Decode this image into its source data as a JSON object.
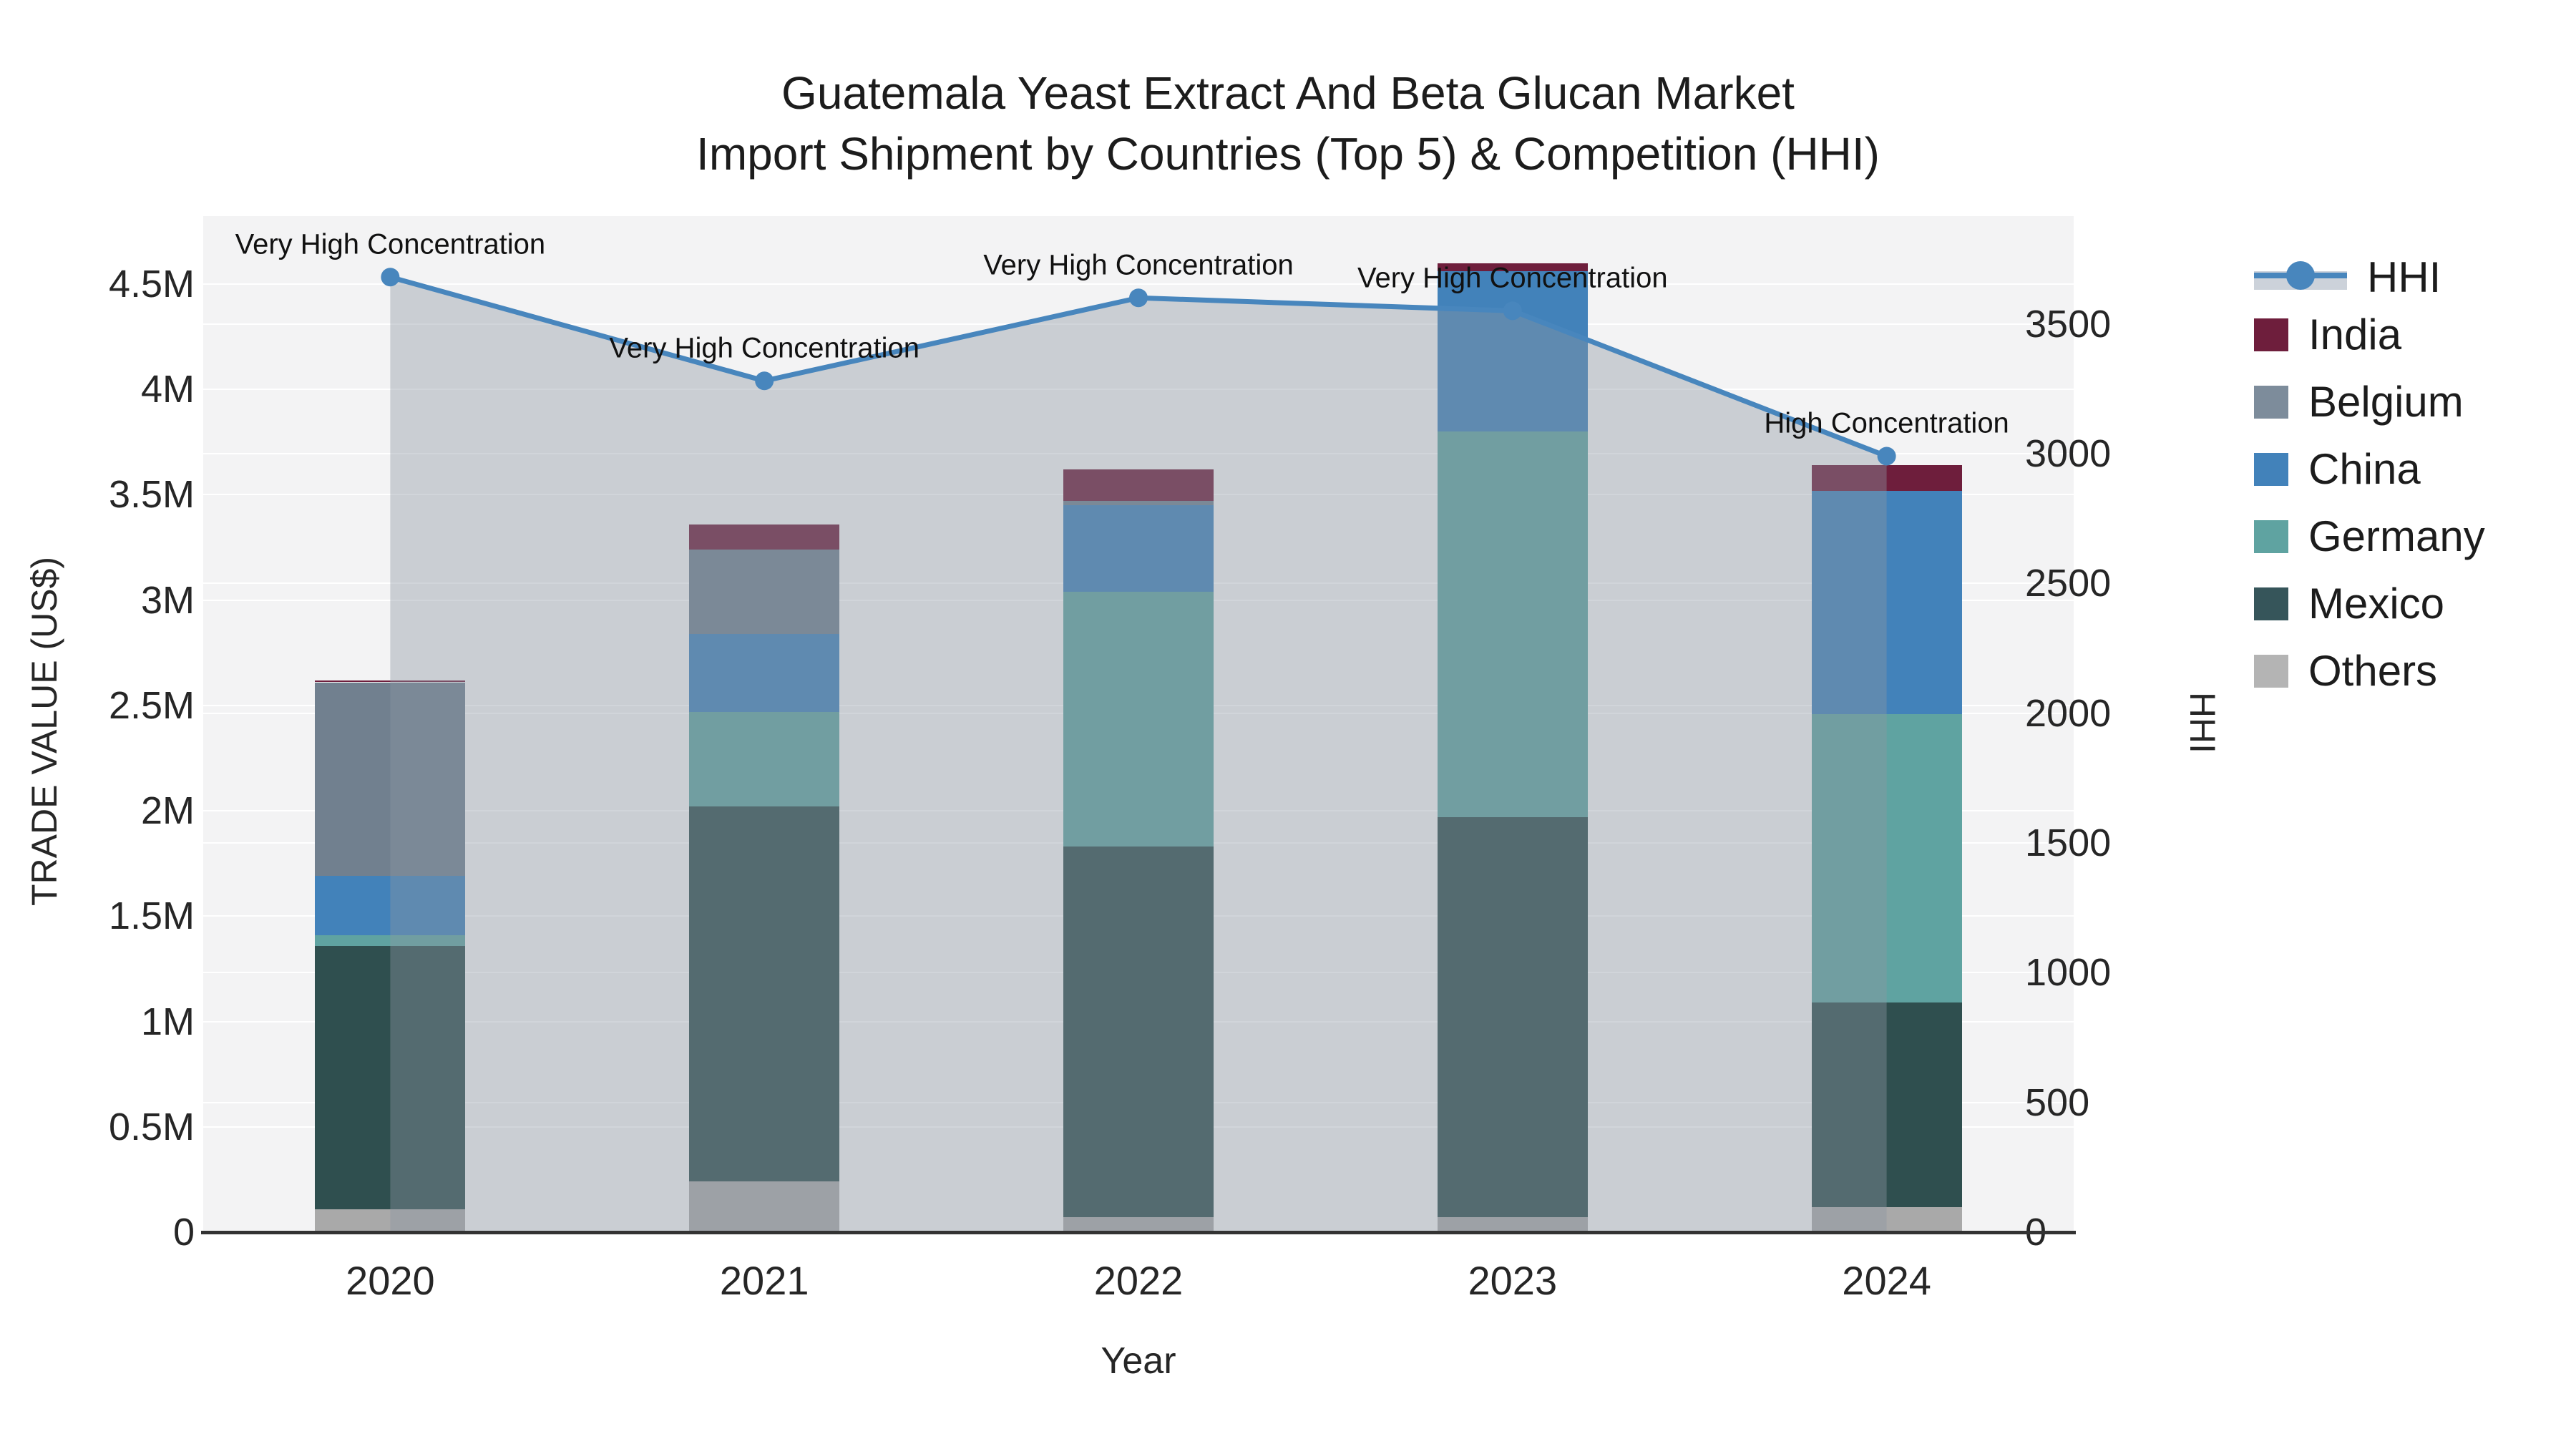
{
  "title": {
    "line1": "Guatemala Yeast Extract And Beta Glucan Market",
    "line2": "Import Shipment by Countries (Top 5) & Competition (HHI)"
  },
  "chart_data": {
    "type": "bar",
    "subtype": "stacked-bars-with-line-area-overlay",
    "categories": [
      "2020",
      "2021",
      "2022",
      "2023",
      "2024"
    ],
    "series": [
      {
        "name": "Others",
        "color": "#a9a9a9",
        "values": [
          0.11,
          0.24,
          0.07,
          0.07,
          0.12
        ]
      },
      {
        "name": "Mexico",
        "color": "#2f4f4f",
        "values": [
          1.25,
          1.78,
          1.76,
          1.9,
          0.97
        ]
      },
      {
        "name": "Germany",
        "color": "#5fa3a1",
        "values": [
          0.05,
          0.45,
          1.21,
          1.83,
          1.37
        ]
      },
      {
        "name": "China",
        "color": "#4282ba",
        "values": [
          0.28,
          0.37,
          0.41,
          0.76,
          1.06
        ]
      },
      {
        "name": "Belgium",
        "color": "#71808f",
        "values": [
          0.92,
          0.4,
          0.02,
          0.0,
          0.0
        ]
      },
      {
        "name": "India",
        "color": "#6e1e3c",
        "values": [
          0.01,
          0.12,
          0.15,
          0.04,
          0.12
        ]
      }
    ],
    "bar_totals_musd": [
      2.62,
      3.36,
      3.62,
      4.6,
      3.64
    ],
    "line_series": {
      "name": "HHI",
      "color": "#4886bd",
      "area_fill": "rgba(139,150,163,0.40)",
      "values": [
        3680,
        3280,
        3600,
        3550,
        2990
      ]
    },
    "annotations": [
      {
        "category": "2020",
        "text": "Very High Concentration"
      },
      {
        "category": "2021",
        "text": "Very High Concentration"
      },
      {
        "category": "2022",
        "text": "Very High Concentration"
      },
      {
        "category": "2023",
        "text": "Very High Concentration"
      },
      {
        "category": "2024",
        "text": "High Concentration"
      }
    ],
    "y_axis": {
      "title": "TRADE VALUE (US$)",
      "tick_values_musd": [
        0,
        0.5,
        1,
        1.5,
        2,
        2.5,
        3,
        3.5,
        4,
        4.5
      ],
      "tick_labels": [
        "0",
        "0.5M",
        "1M",
        "1.5M",
        "2M",
        "2.5M",
        "3M",
        "3.5M",
        "4M",
        "4.5M"
      ],
      "range_musd": [
        0,
        4.82
      ]
    },
    "y2_axis": {
      "title": "HHI",
      "tick_values": [
        0,
        500,
        1000,
        1500,
        2000,
        2500,
        3000,
        3500
      ],
      "tick_labels": [
        "0",
        "500",
        "1000",
        "1500",
        "2000",
        "2500",
        "3000",
        "3500"
      ],
      "range": [
        0,
        3915
      ]
    },
    "x_axis": {
      "title": "Year"
    },
    "grid": true,
    "legend_position": "right"
  },
  "legend": {
    "items": [
      {
        "label": "HHI",
        "kind": "line",
        "color": "#4886bd"
      },
      {
        "label": "India",
        "kind": "swatch",
        "color": "#6e1e3c"
      },
      {
        "label": "Belgium",
        "kind": "swatch",
        "color": "#7d8c9b"
      },
      {
        "label": "China",
        "kind": "swatch",
        "color": "#4282ba"
      },
      {
        "label": "Germany",
        "kind": "swatch",
        "color": "#5fa3a1"
      },
      {
        "label": "Mexico",
        "kind": "swatch",
        "color": "#36555a"
      },
      {
        "label": "Others",
        "kind": "swatch",
        "color": "#b4b4b4"
      }
    ]
  },
  "colors": {
    "plot_background": "#f3f3f4",
    "gridline": "#ffffff",
    "axis_line": "#333333",
    "text": "#1c1c1c"
  }
}
